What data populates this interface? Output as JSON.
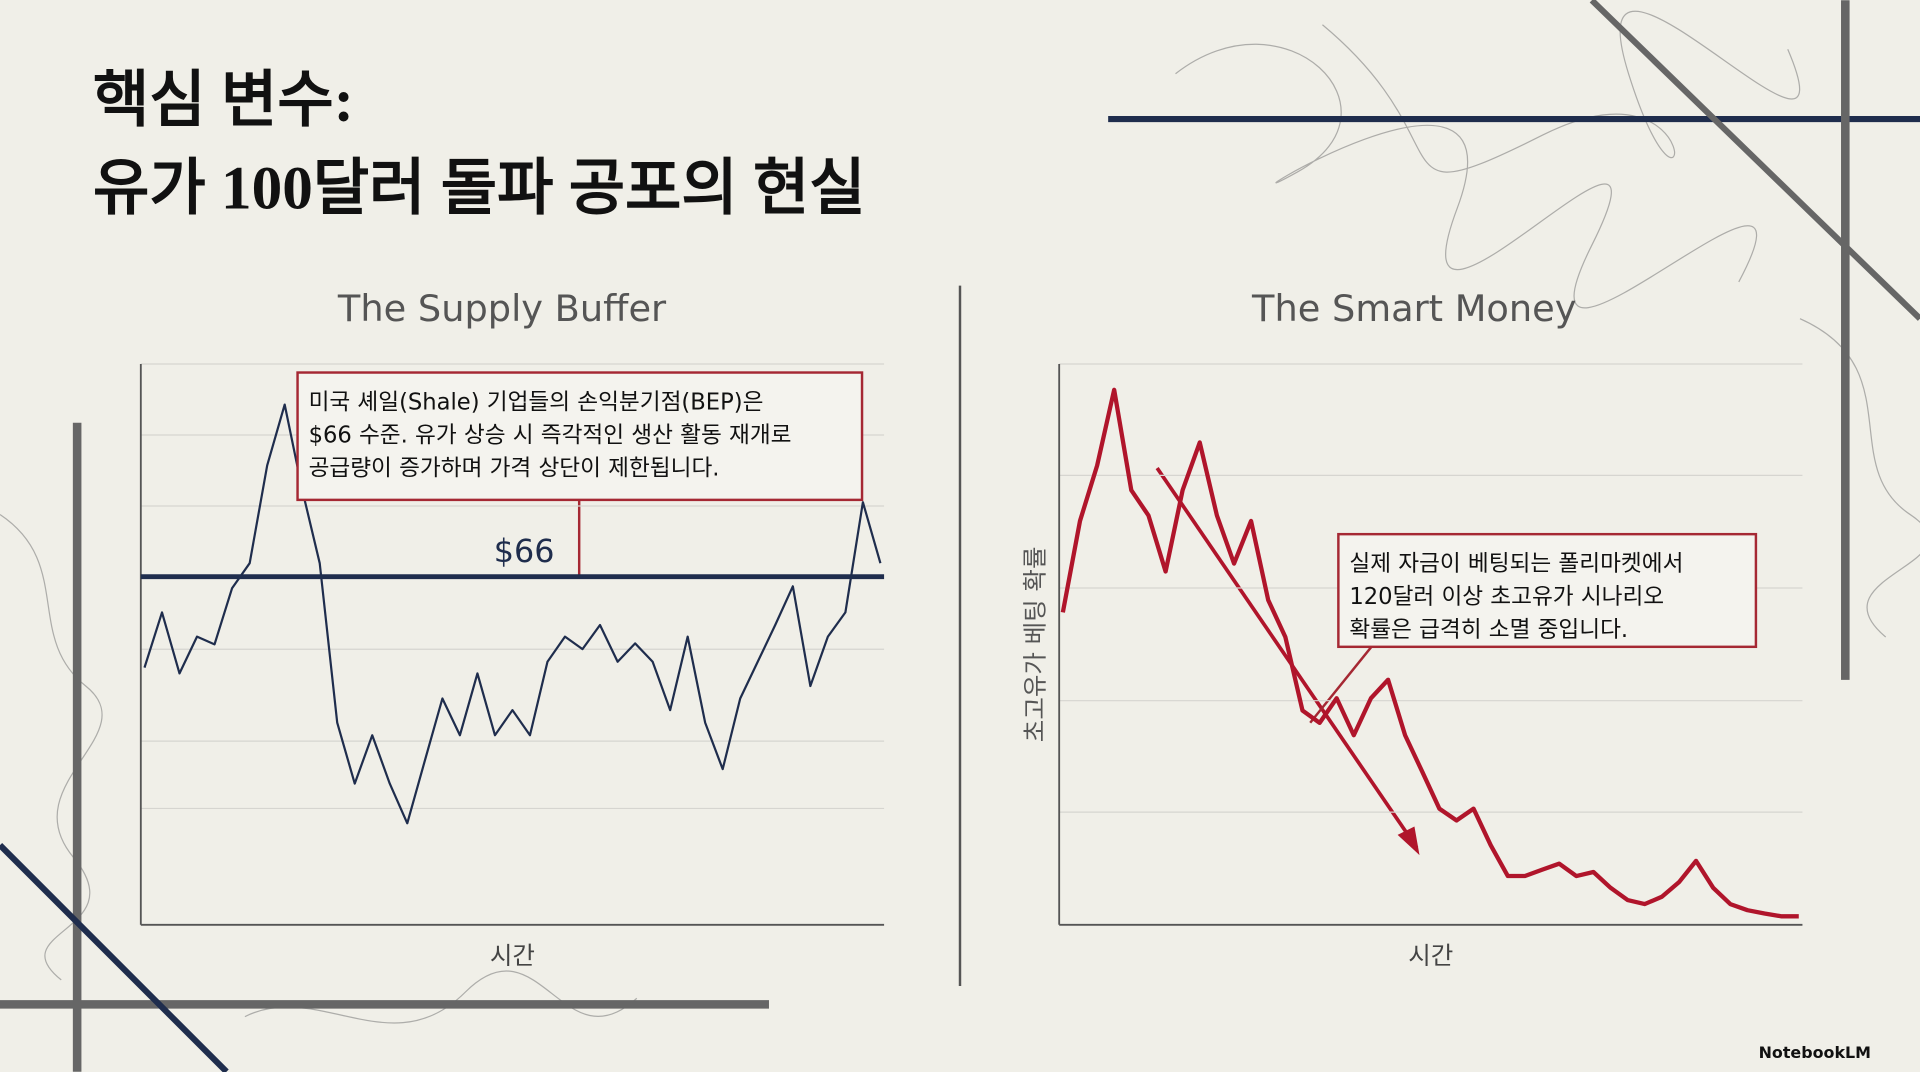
{
  "title": [
    "핵심 변수:",
    "유가 100달러 돌파 공포의 현실"
  ],
  "chart_data": [
    {
      "type": "line",
      "title": "The Supply Buffer",
      "x_label": "시간",
      "color": "#1f2d4d",
      "ylim": [
        30,
        88
      ],
      "values": [
        56.6,
        62.3,
        56,
        59.8,
        59,
        64.8,
        67.4,
        77.5,
        83.8,
        75,
        67.4,
        50.9,
        44.6,
        49.6,
        44.6,
        40.5,
        47,
        53.4,
        49.6,
        56,
        49.6,
        52.2,
        49.6,
        57.2,
        59.8,
        58.5,
        61,
        57.2,
        59.1,
        57.2,
        52.2,
        59.8,
        50.9,
        46.1,
        53.4,
        57.2,
        61,
        65,
        54.7,
        59.8,
        62.3,
        73.7,
        67.4
      ],
      "reference_line": {
        "value": 66,
        "label": "$66"
      },
      "annotation": [
        "미국 셰일(Shale) 기업들의 손익분기점(BEP)은",
        "$66 수준. 유가 상승 시 즉각적인 생산 활동 재개로",
        "공급량이 증가하며 가격 상단이 제한됩니다."
      ]
    },
    {
      "type": "line",
      "title": "The Smart Money",
      "x_label": "시간",
      "y_label": "초고유가 베팅 확률",
      "color": "#b0152b",
      "ylim": [
        0,
        100
      ],
      "values": [
        55.7,
        72,
        81.9,
        95.4,
        77.5,
        73,
        63,
        77.5,
        86,
        73,
        64.4,
        72,
        57.9,
        51.3,
        38.2,
        36,
        40.4,
        33.8,
        40.4,
        43.7,
        33.8,
        27.3,
        20.7,
        18.6,
        20.7,
        14.2,
        8.7,
        8.7,
        9.8,
        10.9,
        8.7,
        9.4,
        6.6,
        4.4,
        3.7,
        5,
        7.6,
        11.4,
        6.6,
        3.7,
        2.6,
        2,
        1.5,
        1.5
      ],
      "annotation": [
        "실제 자금이 베팅되는 폴리마켓에서",
        "120달러 이상 초고유가 시나리오",
        "확률은 급격히 소멸 중입니다."
      ]
    }
  ],
  "watermark": "NotebookLM"
}
